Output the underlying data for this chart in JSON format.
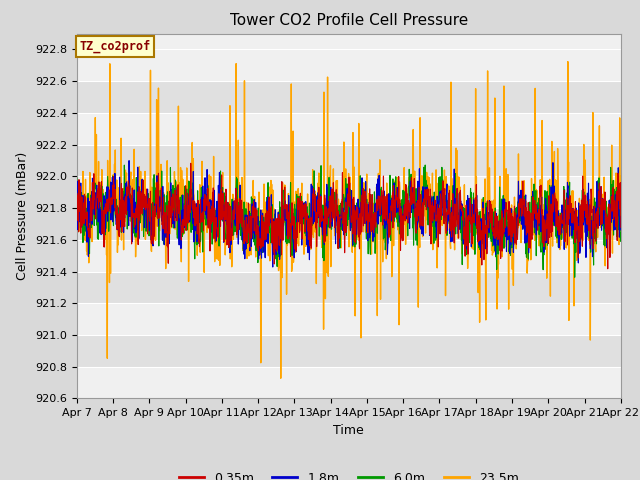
{
  "title": "Tower CO2 Profile Cell Pressure",
  "ylabel": "Cell Pressure (mBar)",
  "xlabel": "Time",
  "ylim": [
    920.6,
    922.9
  ],
  "xlim": [
    0,
    15
  ],
  "series_labels": [
    "0.35m",
    "1.8m",
    "6.0m",
    "23.5m"
  ],
  "series_colors": [
    "#cc0000",
    "#0000cc",
    "#009900",
    "#ffa500"
  ],
  "annotation_text": "TZ_co2prof",
  "annotation_color": "#880000",
  "annotation_bg": "#ffffcc",
  "annotation_border": "#aa7700",
  "tick_labels": [
    "Apr 7",
    "Apr 8",
    "Apr 9",
    "Apr 10",
    "Apr 11",
    "Apr 12",
    "Apr 13",
    "Apr 14",
    "Apr 15",
    "Apr 16",
    "Apr 17",
    "Apr 18",
    "Apr 19",
    "Apr 20",
    "Apr 21",
    "Apr 22"
  ],
  "n_points": 1500,
  "base_pressure": 921.75,
  "bg_color": "#d9d9d9",
  "plot_bg_light": "#f0f0f0",
  "plot_bg_dark": "#e0e0e0",
  "grid_color": "#cccccc",
  "title_fontsize": 11,
  "label_fontsize": 9,
  "tick_fontsize": 8,
  "linewidth_orange": 1.0,
  "linewidth_other": 0.8
}
